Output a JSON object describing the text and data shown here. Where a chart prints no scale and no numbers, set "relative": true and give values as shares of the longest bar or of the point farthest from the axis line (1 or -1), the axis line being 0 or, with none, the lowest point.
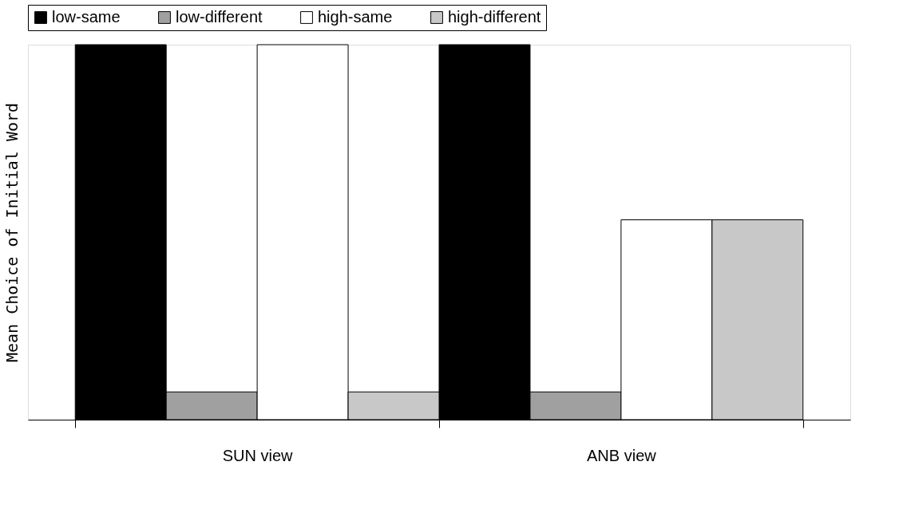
{
  "chart_data": {
    "type": "bar",
    "relative": true,
    "ylabel": "Mean Choice of Initial Word",
    "categories": [
      "SUN view",
      "ANB view"
    ],
    "legend": "top",
    "series": [
      {
        "name": "low-same",
        "color": "#000000",
        "values": [
          1,
          1
        ]
      },
      {
        "name": "low-different",
        "color": "#a0a0a0",
        "values": [
          0.074,
          0.074
        ]
      },
      {
        "name": "high-same",
        "color": "#ffffff",
        "values": [
          1,
          0.533
        ]
      },
      {
        "name": "high-different",
        "color": "#c8c8c8",
        "values": [
          0.074,
          0.533
        ]
      }
    ]
  }
}
